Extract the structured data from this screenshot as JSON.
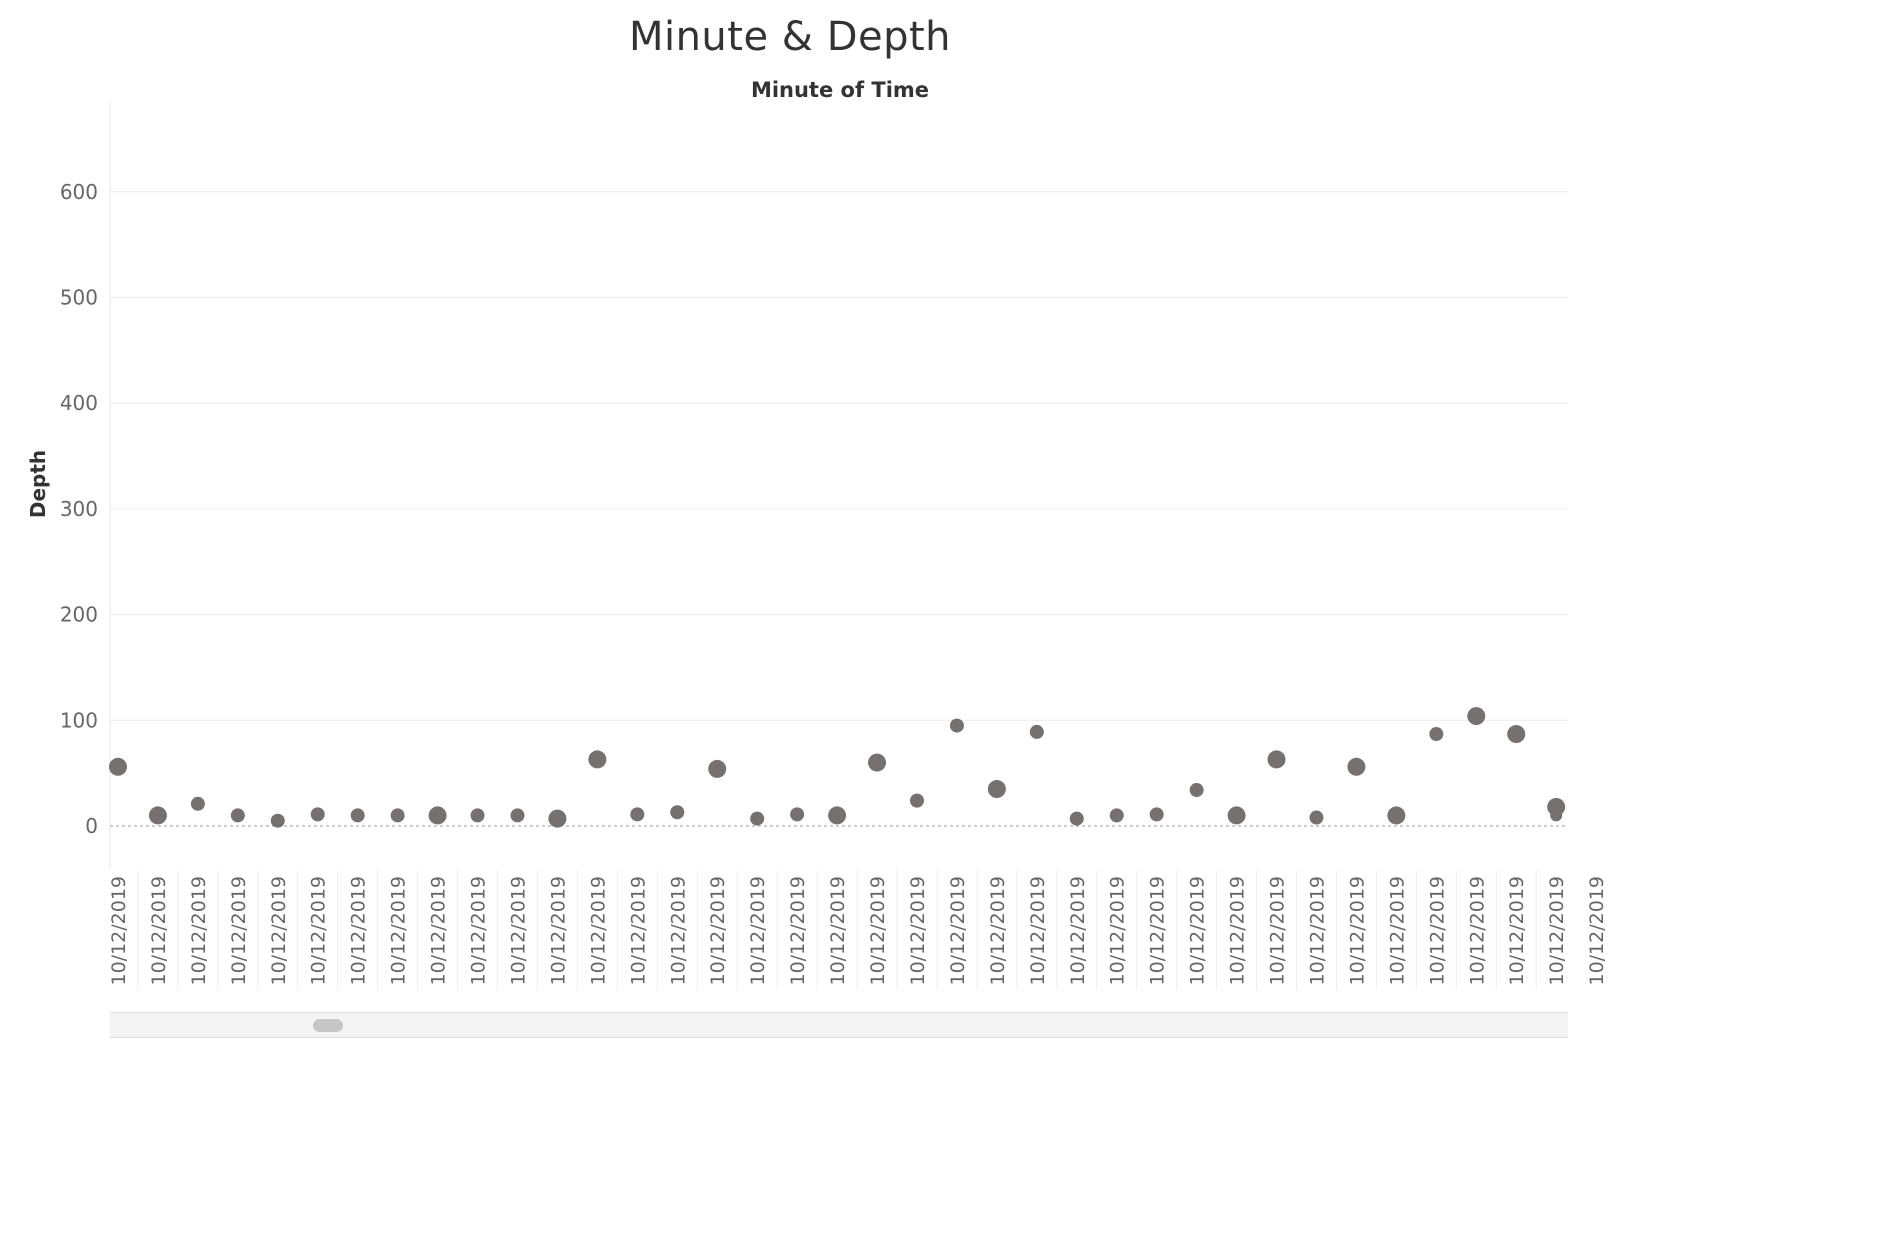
{
  "title": "Minute & Depth",
  "chart_data": {
    "type": "scatter",
    "title": "Minute & Depth",
    "xlabel": "Minute of Time",
    "ylabel": "Depth",
    "ylim": [
      -40,
      680
    ],
    "yticks": [
      0,
      100,
      200,
      300,
      400,
      500,
      600
    ],
    "grid": true,
    "mark_color": "#76706e",
    "zero_line_color": "#9a9a9a",
    "categories": [
      "10/12/2019",
      "10/12/2019",
      "10/12/2019",
      "10/12/2019",
      "10/12/2019",
      "10/12/2019",
      "10/12/2019",
      "10/12/2019",
      "10/12/2019",
      "10/12/2019",
      "10/12/2019",
      "10/12/2019",
      "10/12/2019",
      "10/12/2019",
      "10/12/2019",
      "10/12/2019",
      "10/12/2019",
      "10/12/2019",
      "10/12/2019",
      "10/12/2019",
      "10/12/2019",
      "10/12/2019",
      "10/12/2019",
      "10/12/2019",
      "10/12/2019",
      "10/12/2019",
      "10/12/2019",
      "10/12/2019",
      "10/12/2019",
      "10/12/2019",
      "10/12/2019",
      "10/12/2019",
      "10/12/2019",
      "10/12/2019",
      "10/12/2019",
      "10/12/2019",
      "10/12/2019",
      "10/12/2019"
    ],
    "points": [
      {
        "x": 0,
        "y": 56,
        "size": "large"
      },
      {
        "x": 1,
        "y": 10,
        "size": "large"
      },
      {
        "x": 2,
        "y": 21,
        "size": "medium"
      },
      {
        "x": 3,
        "y": 10,
        "size": "medium"
      },
      {
        "x": 4,
        "y": 5,
        "size": "medium"
      },
      {
        "x": 5,
        "y": 11,
        "size": "medium"
      },
      {
        "x": 6,
        "y": 10,
        "size": "medium"
      },
      {
        "x": 7,
        "y": 10,
        "size": "medium"
      },
      {
        "x": 8,
        "y": 10,
        "size": "large"
      },
      {
        "x": 9,
        "y": 10,
        "size": "medium"
      },
      {
        "x": 10,
        "y": 10,
        "size": "medium"
      },
      {
        "x": 11,
        "y": 7,
        "size": "large"
      },
      {
        "x": 12,
        "y": 63,
        "size": "large"
      },
      {
        "x": 13,
        "y": 11,
        "size": "medium"
      },
      {
        "x": 14,
        "y": 13,
        "size": "medium"
      },
      {
        "x": 15,
        "y": 54,
        "size": "large"
      },
      {
        "x": 16,
        "y": 7,
        "size": "medium"
      },
      {
        "x": 17,
        "y": 11,
        "size": "medium"
      },
      {
        "x": 18,
        "y": 10,
        "size": "large"
      },
      {
        "x": 19,
        "y": 60,
        "size": "large"
      },
      {
        "x": 20,
        "y": 24,
        "size": "medium"
      },
      {
        "x": 21,
        "y": 95,
        "size": "medium"
      },
      {
        "x": 22,
        "y": 35,
        "size": "large"
      },
      {
        "x": 23,
        "y": 89,
        "size": "medium"
      },
      {
        "x": 24,
        "y": 7,
        "size": "medium"
      },
      {
        "x": 25,
        "y": 10,
        "size": "medium"
      },
      {
        "x": 26,
        "y": 11,
        "size": "medium"
      },
      {
        "x": 27,
        "y": 34,
        "size": "medium"
      },
      {
        "x": 28,
        "y": 10,
        "size": "large"
      },
      {
        "x": 29,
        "y": 63,
        "size": "large"
      },
      {
        "x": 30,
        "y": 8,
        "size": "medium"
      },
      {
        "x": 31,
        "y": 56,
        "size": "large"
      },
      {
        "x": 32,
        "y": 10,
        "size": "large"
      },
      {
        "x": 33,
        "y": 87,
        "size": "medium"
      },
      {
        "x": 34,
        "y": 104,
        "size": "large"
      },
      {
        "x": 35,
        "y": 87,
        "size": "large"
      },
      {
        "x": 36,
        "y": 18,
        "size": "large"
      },
      {
        "x": 36,
        "y": 10,
        "size": "small"
      }
    ]
  }
}
